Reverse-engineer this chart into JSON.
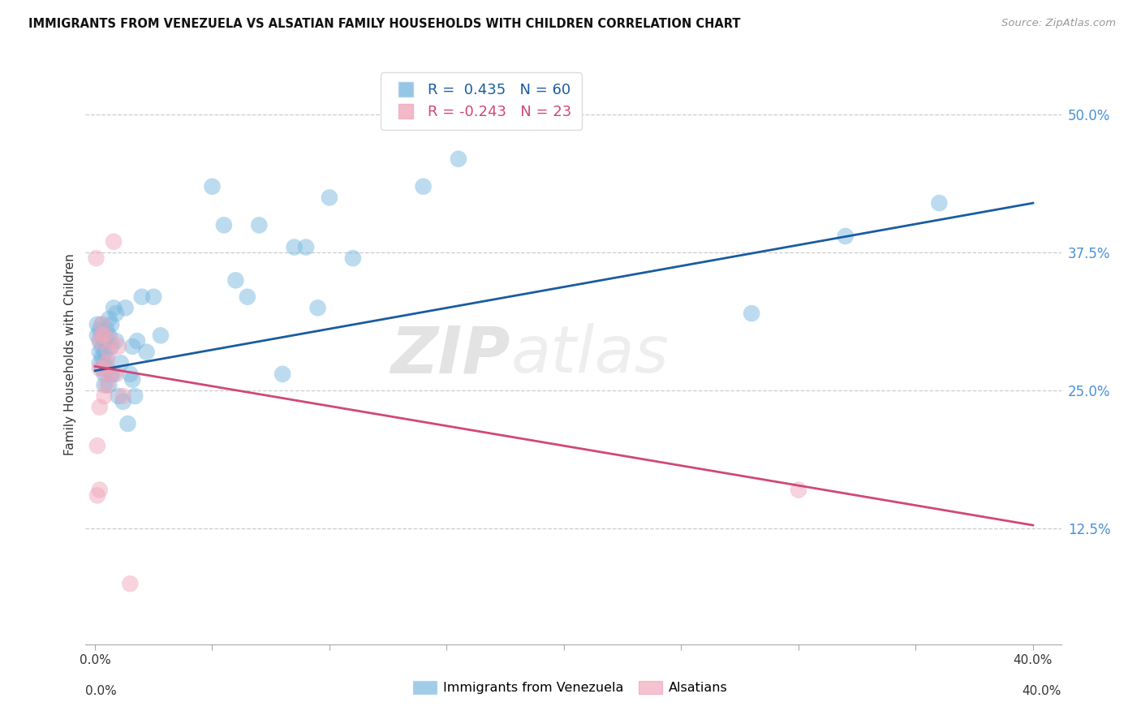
{
  "title": "IMMIGRANTS FROM VENEZUELA VS ALSATIAN FAMILY HOUSEHOLDS WITH CHILDREN CORRELATION CHART",
  "source": "Source: ZipAtlas.com",
  "ylabel": "Family Households with Children",
  "blue_color": "#7bb8e0",
  "blue_line_color": "#1a5ca0",
  "pink_color": "#f0a8bc",
  "pink_line_color": "#d04878",
  "R_blue": 0.435,
  "N_blue": 60,
  "R_pink": -0.243,
  "N_pink": 23,
  "legend_label_blue": "Immigrants from Venezuela",
  "legend_label_pink": "Alsatians",
  "watermark_1": "ZIP",
  "watermark_2": "atlas",
  "blue_x": [
    0.001,
    0.001,
    0.002,
    0.002,
    0.002,
    0.002,
    0.003,
    0.003,
    0.003,
    0.003,
    0.003,
    0.004,
    0.004,
    0.004,
    0.004,
    0.004,
    0.005,
    0.005,
    0.005,
    0.005,
    0.006,
    0.006,
    0.006,
    0.007,
    0.007,
    0.007,
    0.008,
    0.008,
    0.009,
    0.009,
    0.01,
    0.011,
    0.012,
    0.013,
    0.014,
    0.015,
    0.016,
    0.016,
    0.017,
    0.018,
    0.02,
    0.022,
    0.025,
    0.028,
    0.05,
    0.055,
    0.06,
    0.065,
    0.07,
    0.08,
    0.085,
    0.09,
    0.095,
    0.1,
    0.11,
    0.14,
    0.155,
    0.28,
    0.32,
    0.36
  ],
  "blue_y": [
    0.3,
    0.31,
    0.305,
    0.295,
    0.285,
    0.275,
    0.31,
    0.3,
    0.29,
    0.28,
    0.27,
    0.295,
    0.285,
    0.275,
    0.265,
    0.255,
    0.305,
    0.295,
    0.28,
    0.27,
    0.315,
    0.3,
    0.255,
    0.31,
    0.29,
    0.265,
    0.325,
    0.265,
    0.32,
    0.295,
    0.245,
    0.275,
    0.24,
    0.325,
    0.22,
    0.265,
    0.29,
    0.26,
    0.245,
    0.295,
    0.335,
    0.285,
    0.335,
    0.3,
    0.435,
    0.4,
    0.35,
    0.335,
    0.4,
    0.265,
    0.38,
    0.38,
    0.325,
    0.425,
    0.37,
    0.435,
    0.46,
    0.32,
    0.39,
    0.42
  ],
  "pink_x": [
    0.0005,
    0.001,
    0.001,
    0.002,
    0.002,
    0.002,
    0.002,
    0.003,
    0.003,
    0.004,
    0.004,
    0.004,
    0.005,
    0.005,
    0.006,
    0.006,
    0.007,
    0.008,
    0.009,
    0.01,
    0.012,
    0.015,
    0.3
  ],
  "pink_y": [
    0.37,
    0.2,
    0.155,
    0.295,
    0.27,
    0.235,
    0.16,
    0.31,
    0.3,
    0.3,
    0.27,
    0.245,
    0.275,
    0.255,
    0.285,
    0.265,
    0.295,
    0.385,
    0.265,
    0.29,
    0.245,
    0.075,
    0.16
  ],
  "blue_trend": [
    0.0,
    0.4,
    0.268,
    0.42
  ],
  "pink_trend": [
    0.0,
    0.4,
    0.272,
    0.128
  ],
  "ylim": [
    0.02,
    0.545
  ],
  "xlim": [
    -0.004,
    0.412
  ],
  "y_ticks": [
    0.125,
    0.25,
    0.375,
    0.5
  ],
  "x_tick_positions": [
    0.0,
    0.05,
    0.1,
    0.15,
    0.2,
    0.25,
    0.3,
    0.35,
    0.4
  ]
}
